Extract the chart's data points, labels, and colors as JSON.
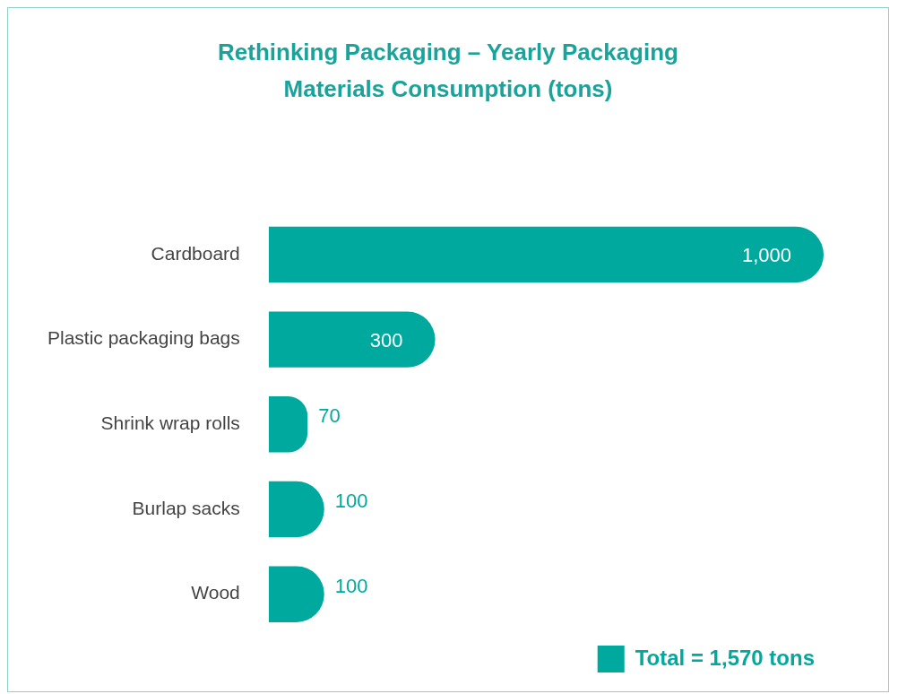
{
  "chart_data": {
    "type": "bar",
    "orientation": "horizontal",
    "title": "Rethinking Packaging – Yearly Packaging Materials Consumption (tons)",
    "categories": [
      "Cardboard",
      "Plastic packaging bags",
      "Shrink wrap rolls",
      "Burlap sacks",
      "Wood"
    ],
    "series": [
      {
        "name": "Total = 1,570 tons",
        "color": "#00a99d",
        "values": [
          1000,
          300,
          70,
          100,
          100
        ],
        "value_labels": [
          "1,000",
          "300",
          "70",
          "100",
          "100"
        ]
      }
    ],
    "legend": "bottom right"
  }
}
